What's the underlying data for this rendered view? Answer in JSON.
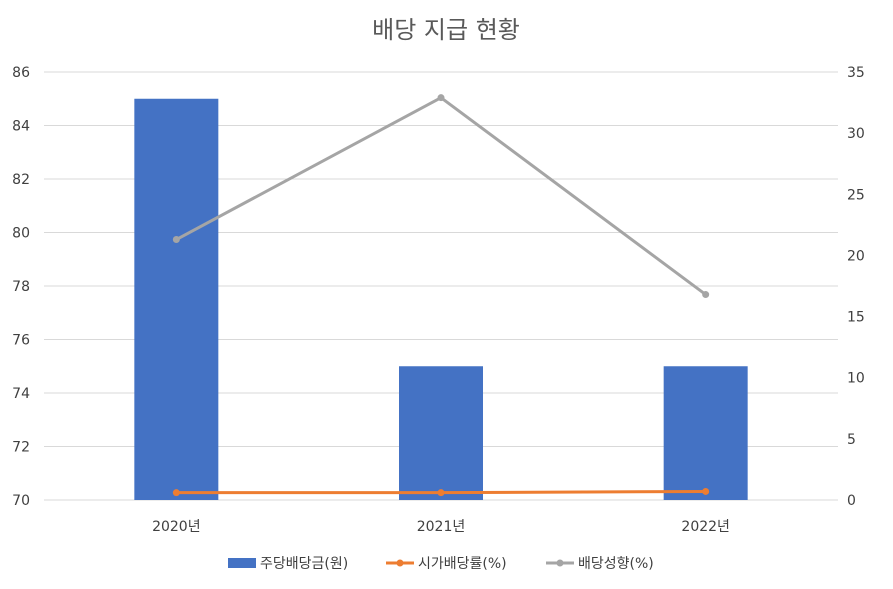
{
  "chart_data": {
    "type": "bar+line",
    "title": "배당 지급 현황",
    "categories": [
      "2020년",
      "2021년",
      "2022년"
    ],
    "y_left": {
      "range": [
        70,
        86
      ],
      "ticks": [
        "70",
        "72",
        "74",
        "76",
        "78",
        "80",
        "82",
        "84",
        "86"
      ]
    },
    "y_right": {
      "range": [
        0,
        35
      ],
      "ticks": [
        "0",
        "5",
        "10",
        "15",
        "20",
        "25",
        "30",
        "35"
      ]
    },
    "series": [
      {
        "name": "주당배당금(원)",
        "type": "bar",
        "axis": "left",
        "color": "#4472C4",
        "values": [
          85,
          75,
          75
        ]
      },
      {
        "name": "시가배당률(%)",
        "type": "line",
        "axis": "right",
        "color": "#ED7D31",
        "values": [
          0.6,
          0.6,
          0.7
        ]
      },
      {
        "name": "배당성향(%)",
        "type": "line",
        "axis": "right",
        "color": "#A5A5A5",
        "values": [
          21.3,
          32.9,
          16.8
        ]
      }
    ],
    "grid": true,
    "legend_position": "bottom"
  }
}
